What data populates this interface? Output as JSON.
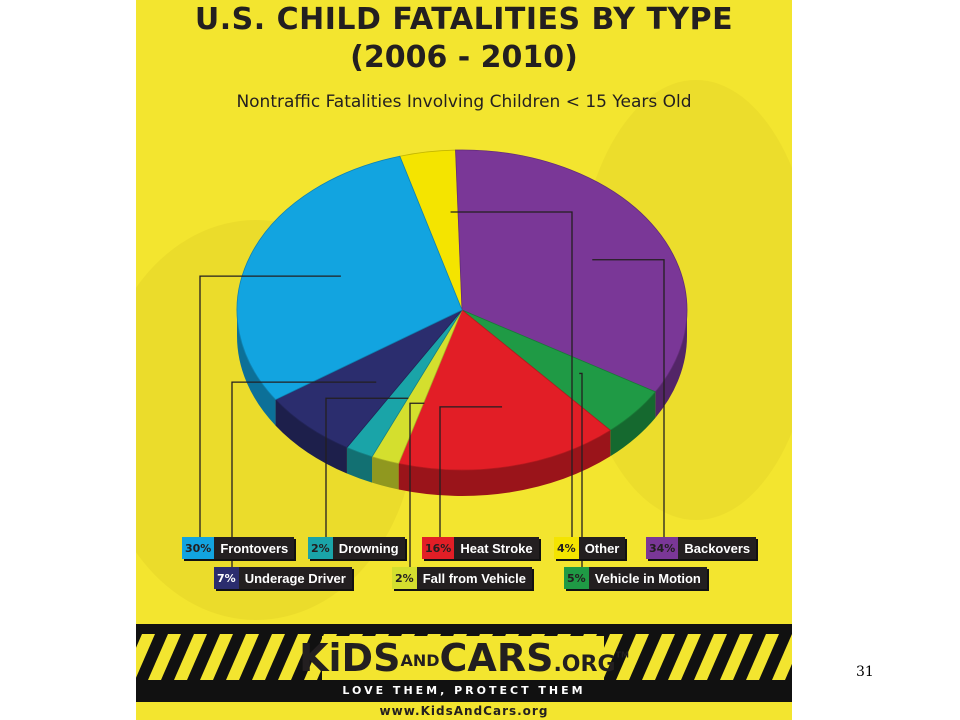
{
  "poster": {
    "title_line1": "U.S. CHILD FATALITIES BY TYPE",
    "title_line2": "(2006 - 2010)",
    "subtitle": "Nontraffic Fatalities Involving Children < 15 Years Old",
    "brand_kids": "KiDS",
    "brand_and": "AND",
    "brand_cars": "CARS",
    "brand_org": ".ORG",
    "brand_tm": "TM",
    "tagline": "LOVE THEM, PROTECT THEM",
    "url": "www.KidsAndCars.org"
  },
  "slide_number": "31",
  "chart_data": {
    "type": "pie",
    "title": "U.S. CHILD FATALITIES BY TYPE (2006 - 2010)",
    "subtitle": "Nontraffic Fatalities Involving Children < 15 Years Old",
    "slices": [
      {
        "label": "Other",
        "pct_label": "4%",
        "value": 4,
        "color": "#f4e400"
      },
      {
        "label": "Backovers",
        "pct_label": "34%",
        "value": 34,
        "color": "#7a3797"
      },
      {
        "label": "Vehicle in Motion",
        "pct_label": "5%",
        "value": 5,
        "color": "#1f9a45"
      },
      {
        "label": "Heat Stroke",
        "pct_label": "16%",
        "value": 16,
        "color": "#e21e26"
      },
      {
        "label": "Fall from Vehicle",
        "pct_label": "2%",
        "value": 2,
        "color": "#d4df2e"
      },
      {
        "label": "Drowning",
        "pct_label": "2%",
        "value": 2,
        "color": "#1aa4a8"
      },
      {
        "label": "Underage Driver",
        "pct_label": "7%",
        "value": 7,
        "color": "#2b2d6e"
      },
      {
        "label": "Frontovers",
        "pct_label": "30%",
        "value": 30,
        "color": "#12a4e0"
      }
    ],
    "legend_placement": "bottom"
  }
}
